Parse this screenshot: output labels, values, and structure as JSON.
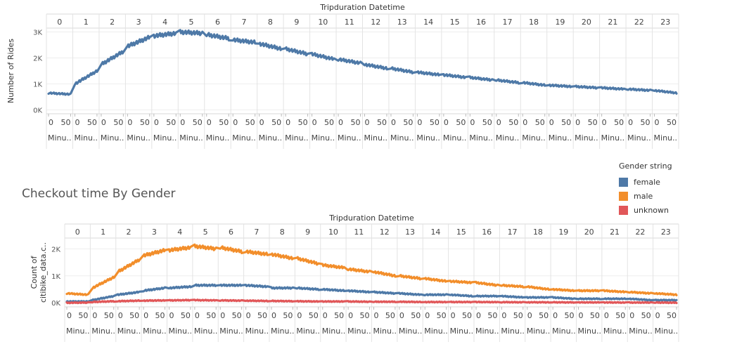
{
  "legend": {
    "title": "Gender string",
    "items": [
      {
        "label": "female",
        "color": "#4e79a7"
      },
      {
        "label": "male",
        "color": "#f28e2b"
      },
      {
        "label": "unknown",
        "color": "#e15759"
      }
    ]
  },
  "chart_data": [
    {
      "type": "scatter",
      "title": "",
      "header_label": "Tripduration Datetime",
      "ylabel": "Number of Rides",
      "hours": [
        0,
        1,
        2,
        3,
        4,
        5,
        6,
        7,
        8,
        9,
        10,
        11,
        12,
        13,
        14,
        15,
        16,
        17,
        18,
        19,
        20,
        21,
        22,
        23
      ],
      "minute_ticks": [
        "0",
        "50"
      ],
      "minute_label": "Minu..",
      "yticks": [
        {
          "v": 0,
          "l": "0K"
        },
        {
          "v": 1000,
          "l": "1K"
        },
        {
          "v": 2000,
          "l": "2K"
        },
        {
          "v": 3000,
          "l": "3K"
        }
      ],
      "ylim": [
        -150,
        3150
      ],
      "series": [
        {
          "color": "#4e79a7",
          "hour_start": [
            650,
            1000,
            1750,
            2450,
            2850,
            3000,
            2900,
            2700,
            2550,
            2350,
            2150,
            1950,
            1750,
            1600,
            1450,
            1350,
            1250,
            1150,
            1050,
            950,
            900,
            850,
            800,
            750
          ],
          "hour_end": [
            600,
            1500,
            2250,
            2800,
            2950,
            2950,
            2750,
            2600,
            2350,
            2150,
            1950,
            1800,
            1600,
            1450,
            1350,
            1250,
            1150,
            1050,
            950,
            900,
            850,
            800,
            750,
            650
          ]
        }
      ]
    },
    {
      "type": "scatter",
      "title": "Checkout time By Gender",
      "header_label": "Tripduration Datetime",
      "ylabel": "Count of citibike_data.c..",
      "hours": [
        0,
        1,
        2,
        3,
        4,
        5,
        6,
        7,
        8,
        9,
        10,
        11,
        12,
        13,
        14,
        15,
        16,
        17,
        18,
        19,
        20,
        21,
        22,
        23
      ],
      "minute_ticks": [
        "0",
        "50"
      ],
      "minute_label": "Minu..",
      "yticks": [
        {
          "v": 0,
          "l": "0K"
        },
        {
          "v": 1000,
          "l": "1K"
        },
        {
          "v": 2000,
          "l": "2K"
        }
      ],
      "ylim": [
        -150,
        2400
      ],
      "series": [
        {
          "name": "male",
          "color": "#f28e2b",
          "hour_start": [
            350,
            550,
            1150,
            1750,
            1950,
            2100,
            2050,
            1900,
            1800,
            1650,
            1400,
            1250,
            1150,
            1000,
            900,
            800,
            750,
            650,
            600,
            500,
            450,
            450,
            400,
            350
          ],
          "hour_end": [
            300,
            950,
            1600,
            1950,
            2050,
            2000,
            1900,
            1800,
            1650,
            1450,
            1300,
            1150,
            1000,
            900,
            800,
            750,
            650,
            600,
            500,
            450,
            450,
            400,
            350,
            300
          ]
        },
        {
          "name": "female",
          "color": "#4e79a7",
          "hour_start": [
            50,
            100,
            300,
            450,
            550,
            650,
            650,
            650,
            550,
            550,
            500,
            450,
            400,
            350,
            300,
            300,
            250,
            250,
            200,
            200,
            150,
            150,
            150,
            100
          ],
          "hour_end": [
            50,
            250,
            400,
            550,
            600,
            650,
            650,
            600,
            550,
            500,
            450,
            400,
            350,
            300,
            300,
            250,
            250,
            200,
            200,
            150,
            150,
            150,
            100,
            100
          ]
        },
        {
          "name": "unknown",
          "color": "#e15759",
          "hour_start": [
            0,
            30,
            60,
            80,
            90,
            100,
            90,
            80,
            70,
            60,
            50,
            50,
            40,
            40,
            30,
            30,
            30,
            25,
            20,
            20,
            15,
            15,
            10,
            10
          ],
          "hour_end": [
            10,
            60,
            80,
            90,
            100,
            90,
            80,
            70,
            60,
            50,
            50,
            40,
            40,
            30,
            30,
            30,
            25,
            20,
            20,
            15,
            15,
            10,
            10,
            5
          ]
        }
      ]
    }
  ]
}
